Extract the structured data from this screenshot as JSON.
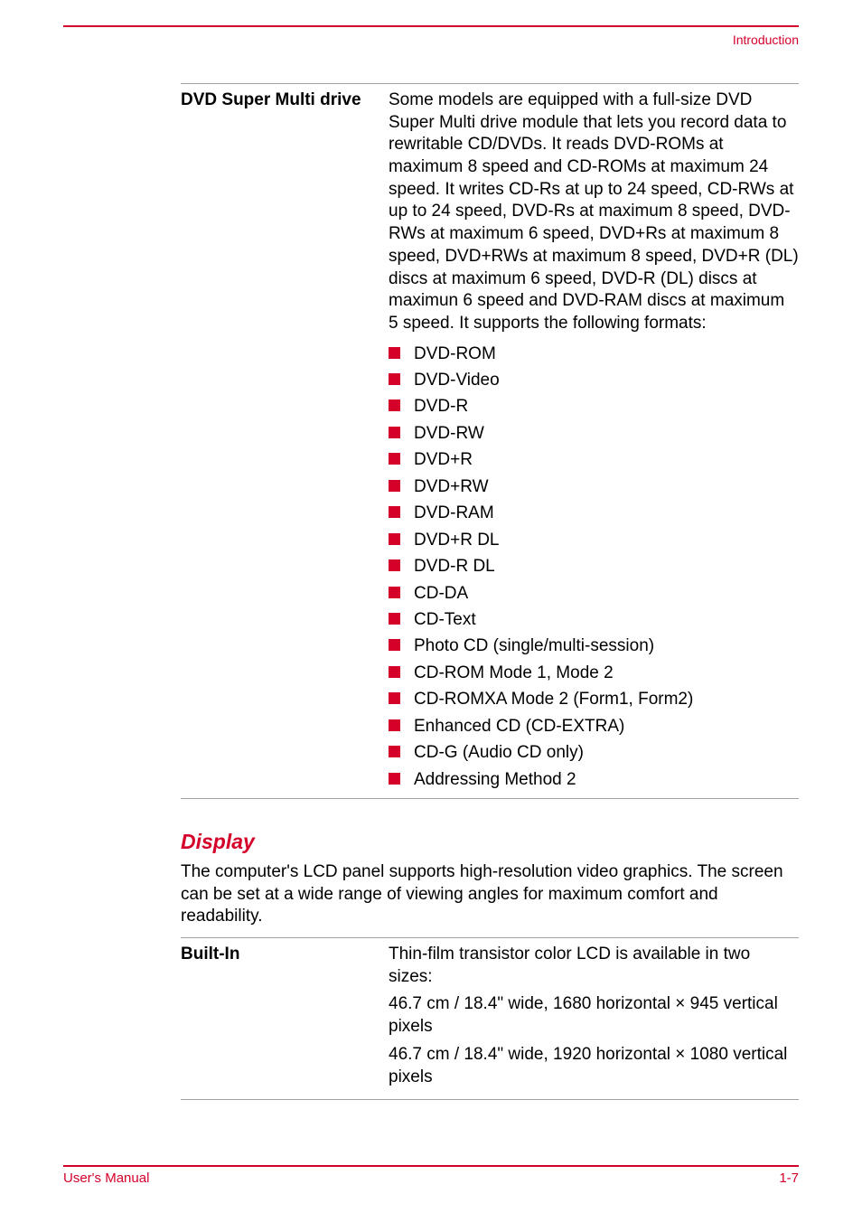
{
  "header": {
    "section_label": "Introduction"
  },
  "drive_spec": {
    "label": "DVD Super Multi drive",
    "description": "Some models are equipped with a full-size DVD Super Multi drive module that lets you record data to rewritable CD/DVDs. It reads DVD-ROMs at maximum 8 speed and CD-ROMs at maximum 24 speed. It writes CD-Rs at up to 24 speed, CD-RWs at up to 24 speed, DVD-Rs at maximum 8 speed, DVD-RWs at maximum 6 speed, DVD+Rs at maximum 8 speed, DVD+RWs at maximum 8 speed, DVD+R (DL) discs at maximum 6 speed, DVD-R (DL) discs at maximun 6 speed and DVD-RAM discs at maximum 5 speed. It supports the following formats:",
    "formats": [
      "DVD-ROM",
      "DVD-Video",
      "DVD-R",
      "DVD-RW",
      "DVD+R",
      "DVD+RW",
      "DVD-RAM",
      "DVD+R DL",
      "DVD-R DL",
      "CD-DA",
      "CD-Text",
      "Photo CD (single/multi-session)",
      "CD-ROM Mode 1, Mode 2",
      "CD-ROMXA Mode 2 (Form1, Form2)",
      "Enhanced CD (CD-EXTRA)",
      "CD-G (Audio CD only)",
      "Addressing Method 2"
    ]
  },
  "display_section": {
    "heading": "Display",
    "intro": "The computer's LCD panel supports high-resolution video graphics. The screen can be set at a wide range of viewing angles for maximum comfort and readability.",
    "builtin_label": "Built-In",
    "builtin_lines": [
      "Thin-film transistor color LCD is available in two sizes:",
      "46.7 cm / 18.4\" wide, 1680 horizontal × 945 vertical pixels",
      "46.7 cm / 18.4\" wide, 1920 horizontal × 1080 vertical pixels"
    ]
  },
  "footer": {
    "left": "User's Manual",
    "right": "1-7"
  },
  "colors": {
    "accent": "#d4002a",
    "rule_grey": "#9da3a6",
    "text": "#000000",
    "background": "#ffffff"
  }
}
